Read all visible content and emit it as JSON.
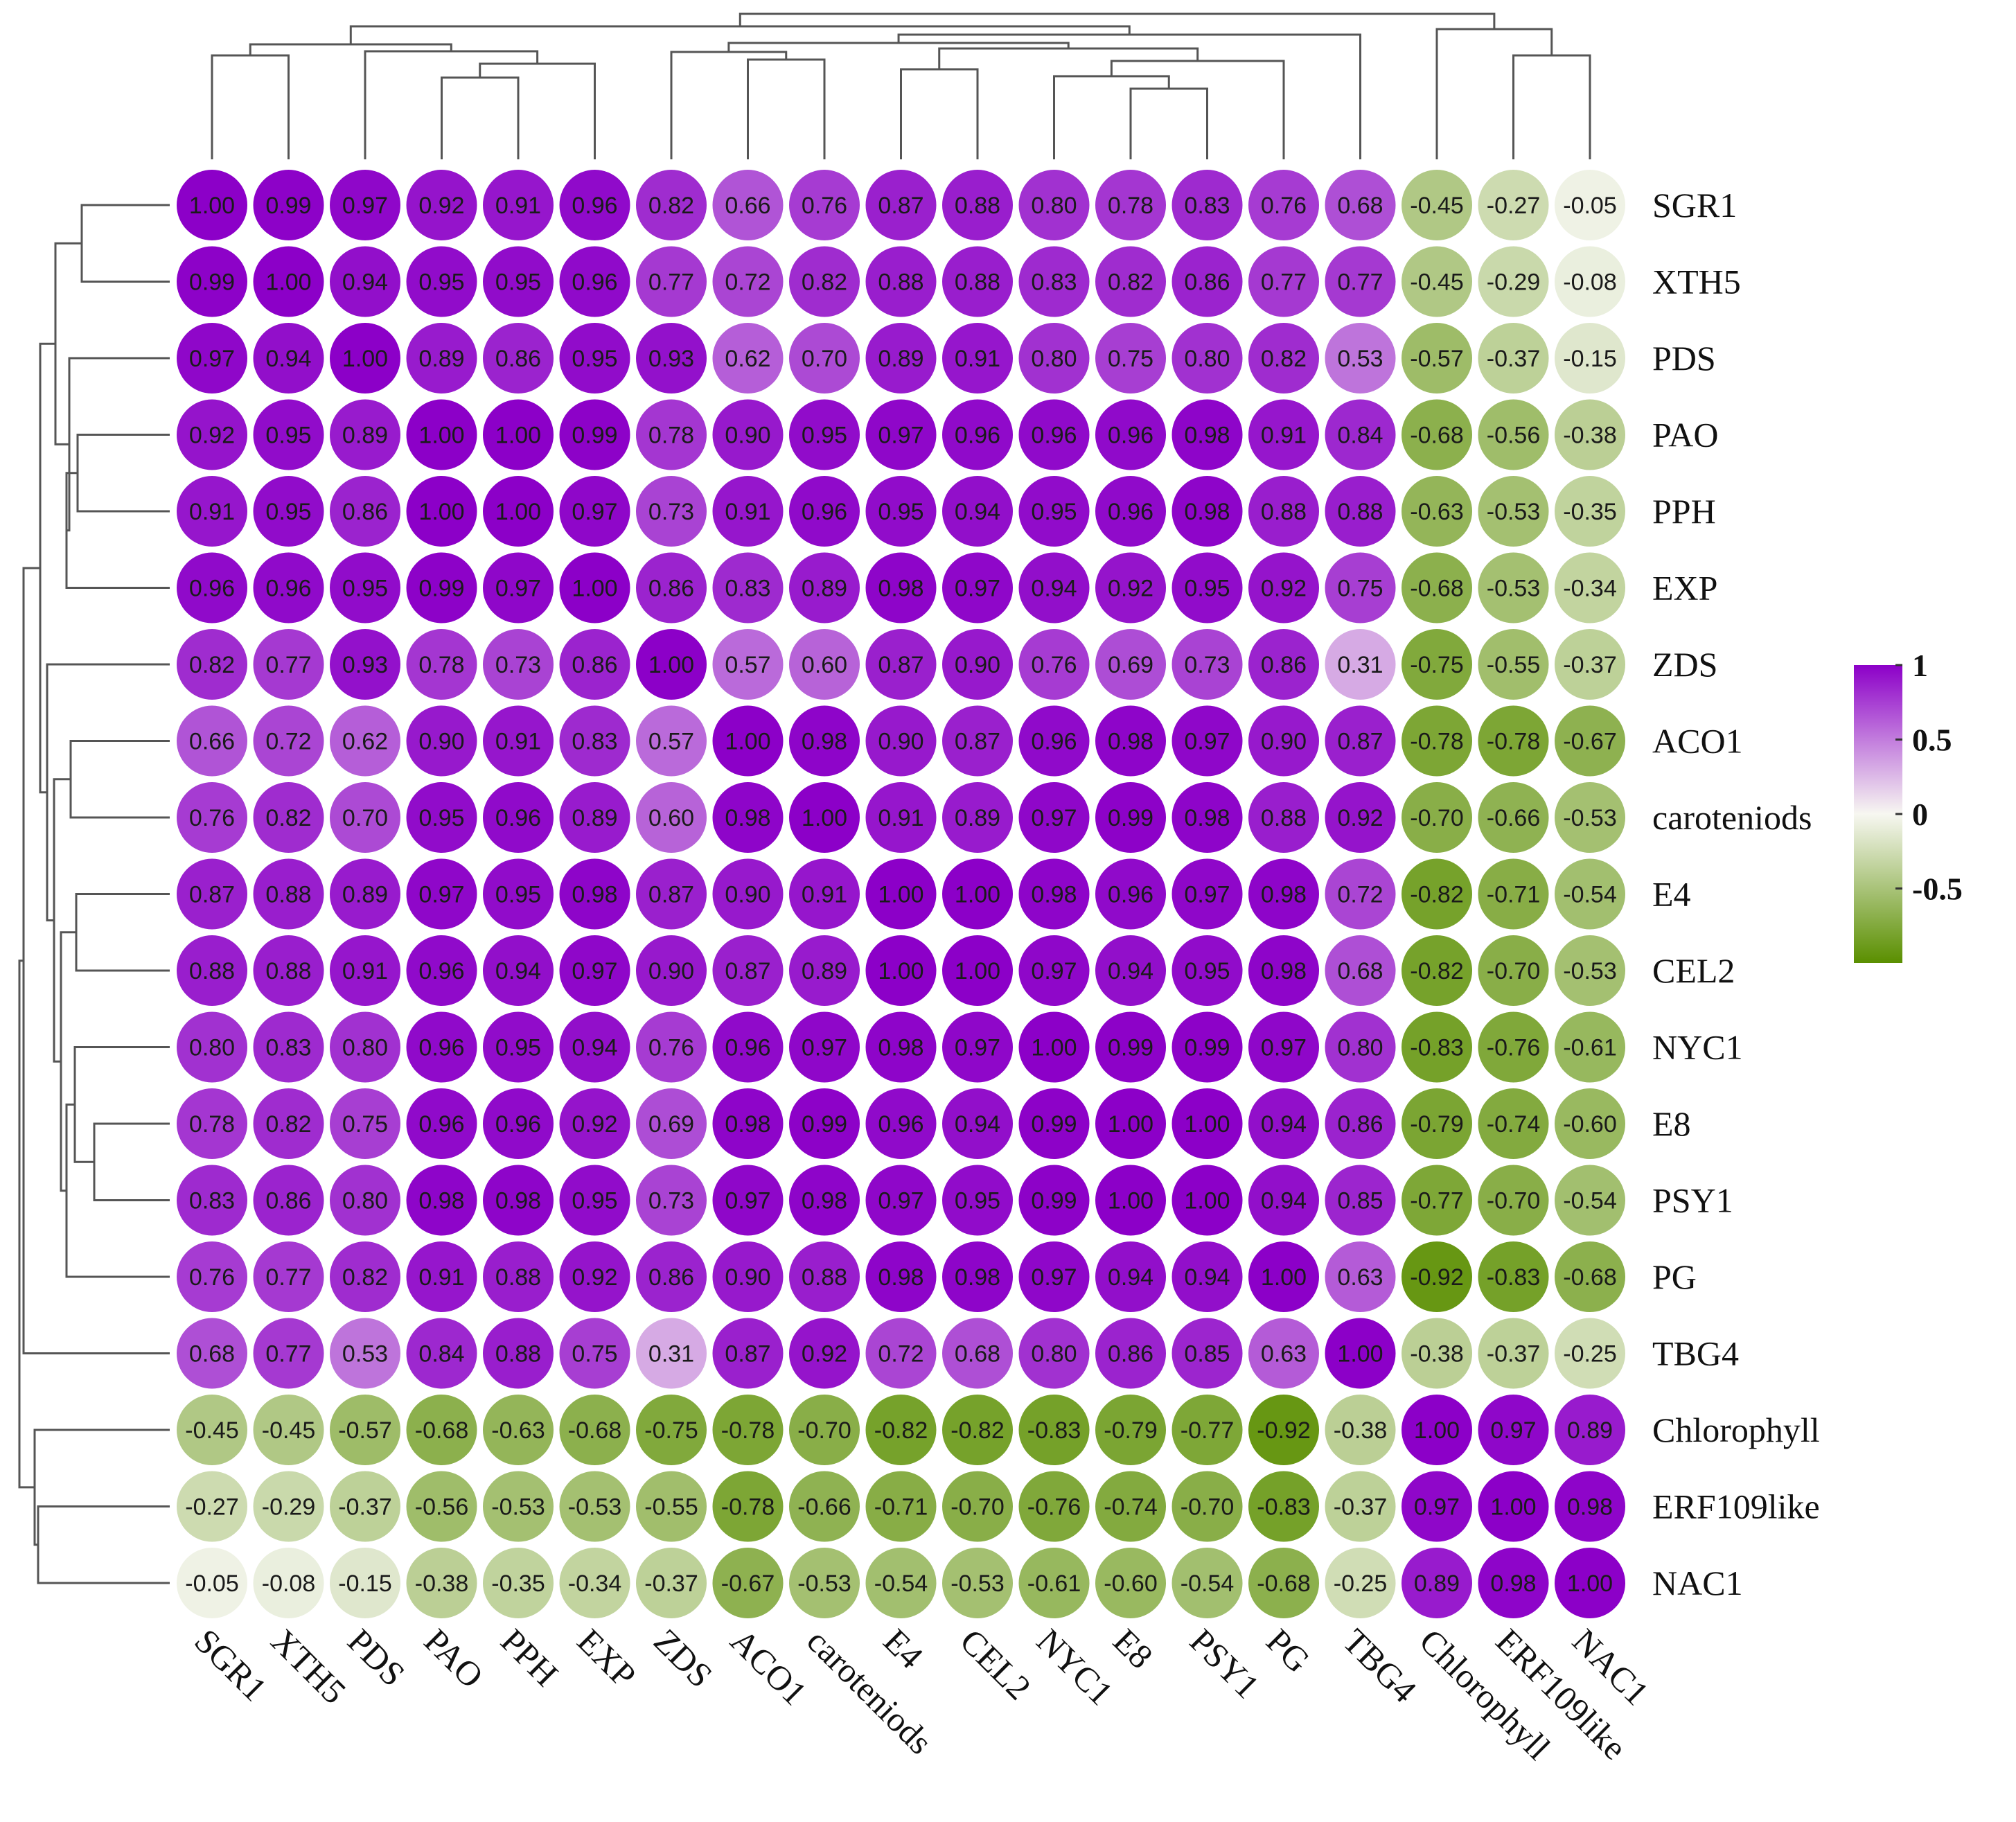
{
  "chart_data": {
    "type": "heatmap",
    "title": "",
    "labels": [
      "SGR1",
      "XTH5",
      "PDS",
      "PAO",
      "PPH",
      "EXP",
      "ZDS",
      "ACO1",
      "caroteniods",
      "E4",
      "CEL2",
      "NYC1",
      "E8",
      "PSY1",
      "PG",
      "TBG4",
      "Chlorophyll",
      "ERF109like",
      "NAC1"
    ],
    "matrix": [
      [
        1.0,
        0.99,
        0.97,
        0.92,
        0.91,
        0.96,
        0.82,
        0.66,
        0.76,
        0.87,
        0.88,
        0.8,
        0.78,
        0.83,
        0.76,
        0.68,
        -0.45,
        -0.27,
        -0.05
      ],
      [
        0.99,
        1.0,
        0.94,
        0.95,
        0.95,
        0.96,
        0.77,
        0.72,
        0.82,
        0.88,
        0.88,
        0.83,
        0.82,
        0.86,
        0.77,
        0.77,
        -0.45,
        -0.29,
        -0.08
      ],
      [
        0.97,
        0.94,
        1.0,
        0.89,
        0.86,
        0.95,
        0.93,
        0.62,
        0.7,
        0.89,
        0.91,
        0.8,
        0.75,
        0.8,
        0.82,
        0.53,
        -0.57,
        -0.37,
        -0.15
      ],
      [
        0.92,
        0.95,
        0.89,
        1.0,
        1.0,
        0.99,
        0.78,
        0.9,
        0.95,
        0.97,
        0.96,
        0.96,
        0.96,
        0.98,
        0.91,
        0.84,
        -0.68,
        -0.56,
        -0.38
      ],
      [
        0.91,
        0.95,
        0.86,
        1.0,
        1.0,
        0.97,
        0.73,
        0.91,
        0.96,
        0.95,
        0.94,
        0.95,
        0.96,
        0.98,
        0.88,
        0.88,
        -0.63,
        -0.53,
        -0.35
      ],
      [
        0.96,
        0.96,
        0.95,
        0.99,
        0.97,
        1.0,
        0.86,
        0.83,
        0.89,
        0.98,
        0.97,
        0.94,
        0.92,
        0.95,
        0.92,
        0.75,
        -0.68,
        -0.53,
        -0.34
      ],
      [
        0.82,
        0.77,
        0.93,
        0.78,
        0.73,
        0.86,
        1.0,
        0.57,
        0.6,
        0.87,
        0.9,
        0.76,
        0.69,
        0.73,
        0.86,
        0.31,
        -0.75,
        -0.55,
        -0.37
      ],
      [
        0.66,
        0.72,
        0.62,
        0.9,
        0.91,
        0.83,
        0.57,
        1.0,
        0.98,
        0.9,
        0.87,
        0.96,
        0.98,
        0.97,
        0.9,
        0.87,
        -0.78,
        -0.78,
        -0.67
      ],
      [
        0.76,
        0.82,
        0.7,
        0.95,
        0.96,
        0.89,
        0.6,
        0.98,
        1.0,
        0.91,
        0.89,
        0.97,
        0.99,
        0.98,
        0.88,
        0.92,
        -0.7,
        -0.66,
        -0.53
      ],
      [
        0.87,
        0.88,
        0.89,
        0.97,
        0.95,
        0.98,
        0.87,
        0.9,
        0.91,
        1.0,
        1.0,
        0.98,
        0.96,
        0.97,
        0.98,
        0.72,
        -0.82,
        -0.71,
        -0.54
      ],
      [
        0.88,
        0.88,
        0.91,
        0.96,
        0.94,
        0.97,
        0.9,
        0.87,
        0.89,
        1.0,
        1.0,
        0.97,
        0.94,
        0.95,
        0.98,
        0.68,
        -0.82,
        -0.7,
        -0.53
      ],
      [
        0.8,
        0.83,
        0.8,
        0.96,
        0.95,
        0.94,
        0.76,
        0.96,
        0.97,
        0.98,
        0.97,
        1.0,
        0.99,
        0.99,
        0.97,
        0.8,
        -0.83,
        -0.76,
        -0.61
      ],
      [
        0.78,
        0.82,
        0.75,
        0.96,
        0.96,
        0.92,
        0.69,
        0.98,
        0.99,
        0.96,
        0.94,
        0.99,
        1.0,
        1.0,
        0.94,
        0.86,
        -0.79,
        -0.74,
        -0.6
      ],
      [
        0.83,
        0.86,
        0.8,
        0.98,
        0.98,
        0.95,
        0.73,
        0.97,
        0.98,
        0.97,
        0.95,
        0.99,
        1.0,
        1.0,
        0.94,
        0.85,
        -0.77,
        -0.7,
        -0.54
      ],
      [
        0.76,
        0.77,
        0.82,
        0.91,
        0.88,
        0.92,
        0.86,
        0.9,
        0.88,
        0.98,
        0.98,
        0.97,
        0.94,
        0.94,
        1.0,
        0.63,
        -0.92,
        -0.83,
        -0.68
      ],
      [
        0.68,
        0.77,
        0.53,
        0.84,
        0.88,
        0.75,
        0.31,
        0.87,
        0.92,
        0.72,
        0.68,
        0.8,
        0.86,
        0.85,
        0.63,
        1.0,
        -0.38,
        -0.37,
        -0.25
      ],
      [
        -0.45,
        -0.45,
        -0.57,
        -0.68,
        -0.63,
        -0.68,
        -0.75,
        -0.78,
        -0.7,
        -0.82,
        -0.82,
        -0.83,
        -0.79,
        -0.77,
        -0.92,
        -0.38,
        1.0,
        0.97,
        0.89
      ],
      [
        -0.27,
        -0.29,
        -0.37,
        -0.56,
        -0.53,
        -0.53,
        -0.55,
        -0.78,
        -0.66,
        -0.71,
        -0.7,
        -0.76,
        -0.74,
        -0.7,
        -0.83,
        -0.37,
        0.97,
        1.0,
        0.98
      ],
      [
        -0.05,
        -0.08,
        -0.15,
        -0.38,
        -0.35,
        -0.34,
        -0.37,
        -0.67,
        -0.53,
        -0.54,
        -0.53,
        -0.61,
        -0.6,
        -0.54,
        -0.68,
        -0.25,
        0.89,
        0.98,
        1.0
      ]
    ],
    "value_range": [
      -1,
      1
    ],
    "colorbar": {
      "ticks": [
        {
          "label": "1",
          "value": 1
        },
        {
          "label": "0.5",
          "value": 0.5
        },
        {
          "label": "0",
          "value": 0
        },
        {
          "label": "-0.5",
          "value": -0.5
        }
      ],
      "colors": {
        "high": "#8c00c8",
        "mid": "#f7f7f1",
        "low": "#5a8f00"
      }
    },
    "marker": "circle",
    "dendrogram": {
      "rows": true,
      "columns": true
    }
  }
}
